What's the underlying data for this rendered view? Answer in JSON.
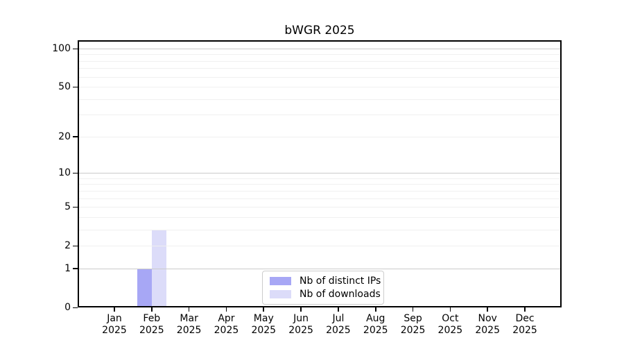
{
  "title": "bWGR 2025",
  "chart_data": {
    "type": "bar",
    "title": "bWGR 2025",
    "categories": [
      "Jan 2025",
      "Feb 2025",
      "Mar 2025",
      "Apr 2025",
      "May 2025",
      "Jun 2025",
      "Jul 2025",
      "Aug 2025",
      "Sep 2025",
      "Oct 2025",
      "Nov 2025",
      "Dec 2025"
    ],
    "series": [
      {
        "name": "Nb of distinct IPs",
        "color": "#a7a7f5",
        "values": [
          0,
          1,
          0,
          0,
          0,
          0,
          0,
          0,
          0,
          0,
          0,
          0
        ]
      },
      {
        "name": "Nb of downloads",
        "color": "#dcdcf9",
        "values": [
          0,
          3,
          0,
          0,
          0,
          0,
          0,
          0,
          0,
          0,
          0,
          0
        ]
      }
    ],
    "xlabel": "",
    "ylabel": "",
    "yscale": "log1p",
    "ylim": [
      0,
      117
    ],
    "ytick_labels": [
      "0",
      "1",
      "2",
      "5",
      "10",
      "20",
      "50",
      "100"
    ],
    "ytick_values": [
      0,
      1,
      2,
      5,
      10,
      20,
      50,
      100
    ],
    "major_gridlines": [
      1,
      10,
      100
    ],
    "minor_gridlines": [
      2,
      3,
      4,
      5,
      6,
      7,
      8,
      9,
      20,
      30,
      40,
      50,
      60,
      70,
      80,
      90
    ],
    "grid": "horizontal",
    "legend_position": "lower center"
  },
  "legend": {
    "items": [
      {
        "label": "Nb of distinct IPs",
        "color": "#a7a7f5"
      },
      {
        "label": "Nb of downloads",
        "color": "#dcdcf9"
      }
    ]
  },
  "colors": {
    "background": "#ffffff",
    "axis": "#000000",
    "major_grid": "#cbcbcb",
    "minor_grid": "#f0f0f0",
    "text": "#000000",
    "legend_border": "#cccccc"
  }
}
